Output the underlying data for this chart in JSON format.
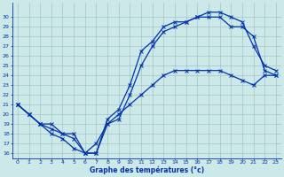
{
  "title": "Graphe des températures (°c)",
  "bg_color": "#cce8e8",
  "grid_color": "#99bbbb",
  "line_color": "#0033aa",
  "ylim": [
    15.5,
    31.5
  ],
  "xlim": [
    -0.5,
    23.5
  ],
  "yticks": [
    16,
    17,
    18,
    19,
    20,
    21,
    22,
    23,
    24,
    25,
    26,
    27,
    28,
    29,
    30
  ],
  "xticks": [
    0,
    1,
    2,
    3,
    4,
    5,
    6,
    7,
    8,
    9,
    10,
    11,
    12,
    13,
    14,
    15,
    16,
    17,
    18,
    19,
    20,
    21,
    22,
    23
  ],
  "line_max_x": [
    0,
    1,
    2,
    3,
    4,
    5,
    6,
    7,
    8,
    9,
    10,
    11,
    12,
    13,
    14,
    15,
    16,
    17,
    18,
    19,
    20,
    21,
    22,
    23
  ],
  "line_max_y": [
    21,
    20,
    19,
    18.5,
    18,
    17.5,
    16,
    16,
    19.5,
    20.5,
    23,
    26.5,
    27.5,
    29,
    29.5,
    29.5,
    30,
    30.5,
    30.5,
    30,
    29.5,
    27,
    25,
    24.5
  ],
  "line_min_x": [
    0,
    1,
    2,
    3,
    4,
    5,
    6,
    7,
    8,
    9,
    10,
    11,
    12,
    13,
    14,
    15,
    16,
    17,
    18,
    19,
    20,
    21,
    22,
    23
  ],
  "line_min_y": [
    21,
    20,
    19,
    18,
    17.5,
    16.5,
    16,
    16,
    19,
    19.5,
    22,
    25,
    27,
    28.5,
    29,
    29.5,
    30,
    30,
    30,
    29,
    29,
    28,
    24.5,
    24
  ],
  "line_mean_x": [
    0,
    1,
    2,
    3,
    4,
    5,
    6,
    7,
    8,
    9,
    10,
    11,
    12,
    13,
    14,
    15,
    16,
    17,
    18,
    19,
    20,
    21,
    22,
    23
  ],
  "line_mean_y": [
    21,
    20,
    19,
    19,
    18,
    18,
    16,
    17,
    19,
    20,
    21,
    22,
    23,
    24,
    24.5,
    24.5,
    24.5,
    24.5,
    24.5,
    24,
    23.5,
    23,
    24,
    24
  ],
  "figsize": [
    3.2,
    2.0
  ],
  "dpi": 100
}
